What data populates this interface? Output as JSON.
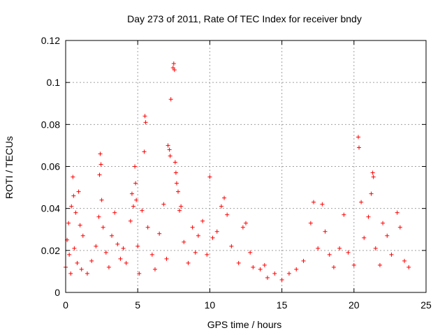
{
  "chart_data": {
    "type": "scatter",
    "title": "Day 273 of 2011, Rate Of TEC Index for receiver bndy",
    "xlabel": "GPS time / hours",
    "ylabel": "ROTI / TECUs",
    "xlim": [
      0,
      25
    ],
    "ylim": [
      0,
      0.12
    ],
    "xticks": [
      0,
      5,
      10,
      15,
      20,
      25
    ],
    "xtick_labels": [
      "0",
      "5",
      "10",
      "15",
      "20",
      "25"
    ],
    "yticks": [
      0,
      0.02,
      0.04,
      0.06,
      0.08,
      0.1,
      0.12
    ],
    "ytick_labels": [
      "0",
      "0.02",
      "0.04",
      "0.06",
      "0.08",
      "0.1",
      "0.12"
    ],
    "grid": true,
    "marker": "+",
    "color": "#ff0000",
    "series": [
      {
        "name": "ROTI",
        "points": [
          [
            0.0,
            0.012
          ],
          [
            0.1,
            0.025
          ],
          [
            0.2,
            0.033
          ],
          [
            0.25,
            0.018
          ],
          [
            0.35,
            0.009
          ],
          [
            0.4,
            0.041
          ],
          [
            0.5,
            0.055
          ],
          [
            0.55,
            0.046
          ],
          [
            0.6,
            0.021
          ],
          [
            0.7,
            0.038
          ],
          [
            0.8,
            0.014
          ],
          [
            0.9,
            0.048
          ],
          [
            1.0,
            0.032
          ],
          [
            1.1,
            0.011
          ],
          [
            1.2,
            0.027
          ],
          [
            1.5,
            0.009
          ],
          [
            1.8,
            0.015
          ],
          [
            2.1,
            0.022
          ],
          [
            2.3,
            0.036
          ],
          [
            2.35,
            0.056
          ],
          [
            2.4,
            0.066
          ],
          [
            2.45,
            0.061
          ],
          [
            2.5,
            0.044
          ],
          [
            2.6,
            0.031
          ],
          [
            2.8,
            0.019
          ],
          [
            3.0,
            0.012
          ],
          [
            3.2,
            0.027
          ],
          [
            3.4,
            0.038
          ],
          [
            3.6,
            0.023
          ],
          [
            3.8,
            0.016
          ],
          [
            4.0,
            0.021
          ],
          [
            4.2,
            0.014
          ],
          [
            4.5,
            0.034
          ],
          [
            4.6,
            0.047
          ],
          [
            4.7,
            0.041
          ],
          [
            4.8,
            0.06
          ],
          [
            4.85,
            0.052
          ],
          [
            4.9,
            0.044
          ],
          [
            5.0,
            0.022
          ],
          [
            5.1,
            0.009
          ],
          [
            5.3,
            0.039
          ],
          [
            5.45,
            0.067
          ],
          [
            5.5,
            0.084
          ],
          [
            5.55,
            0.081
          ],
          [
            5.7,
            0.031
          ],
          [
            6.0,
            0.018
          ],
          [
            6.2,
            0.011
          ],
          [
            6.5,
            0.028
          ],
          [
            6.8,
            0.042
          ],
          [
            7.0,
            0.016
          ],
          [
            7.1,
            0.07
          ],
          [
            7.2,
            0.068
          ],
          [
            7.25,
            0.065
          ],
          [
            7.3,
            0.092
          ],
          [
            7.45,
            0.107
          ],
          [
            7.5,
            0.109
          ],
          [
            7.55,
            0.106
          ],
          [
            7.6,
            0.062
          ],
          [
            7.65,
            0.057
          ],
          [
            7.7,
            0.052
          ],
          [
            7.8,
            0.048
          ],
          [
            7.9,
            0.039
          ],
          [
            8.0,
            0.041
          ],
          [
            8.2,
            0.024
          ],
          [
            8.5,
            0.014
          ],
          [
            8.8,
            0.031
          ],
          [
            9.0,
            0.019
          ],
          [
            9.2,
            0.027
          ],
          [
            9.5,
            0.034
          ],
          [
            9.8,
            0.018
          ],
          [
            10.0,
            0.055
          ],
          [
            10.2,
            0.026
          ],
          [
            10.5,
            0.029
          ],
          [
            10.8,
            0.041
          ],
          [
            11.0,
            0.045
          ],
          [
            11.2,
            0.037
          ],
          [
            11.5,
            0.022
          ],
          [
            12.0,
            0.014
          ],
          [
            12.3,
            0.031
          ],
          [
            12.5,
            0.033
          ],
          [
            12.8,
            0.019
          ],
          [
            13.0,
            0.012
          ],
          [
            13.5,
            0.011
          ],
          [
            13.8,
            0.013
          ],
          [
            14.0,
            0.007
          ],
          [
            14.5,
            0.009
          ],
          [
            15.0,
            0.006
          ],
          [
            15.5,
            0.009
          ],
          [
            16.0,
            0.011
          ],
          [
            16.5,
            0.015
          ],
          [
            17.0,
            0.033
          ],
          [
            17.2,
            0.043
          ],
          [
            17.5,
            0.021
          ],
          [
            17.8,
            0.042
          ],
          [
            18.0,
            0.029
          ],
          [
            18.3,
            0.018
          ],
          [
            18.6,
            0.012
          ],
          [
            19.0,
            0.021
          ],
          [
            19.3,
            0.037
          ],
          [
            19.6,
            0.019
          ],
          [
            20.0,
            0.013
          ],
          [
            20.3,
            0.074
          ],
          [
            20.35,
            0.069
          ],
          [
            20.5,
            0.043
          ],
          [
            20.7,
            0.026
          ],
          [
            21.0,
            0.036
          ],
          [
            21.2,
            0.047
          ],
          [
            21.3,
            0.057
          ],
          [
            21.35,
            0.055
          ],
          [
            21.5,
            0.021
          ],
          [
            21.8,
            0.013
          ],
          [
            22.0,
            0.033
          ],
          [
            22.3,
            0.027
          ],
          [
            22.6,
            0.018
          ],
          [
            23.0,
            0.038
          ],
          [
            23.2,
            0.031
          ],
          [
            23.5,
            0.015
          ],
          [
            23.8,
            0.012
          ]
        ]
      }
    ]
  }
}
